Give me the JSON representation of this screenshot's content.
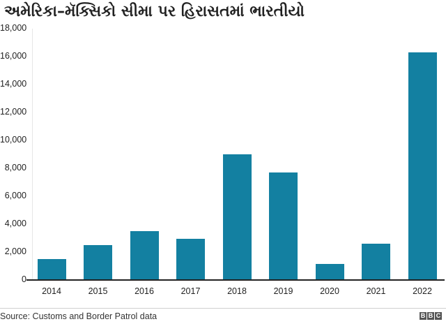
{
  "header": {
    "title": "અમેરિકા–મૅક્સિકો સીમા પર હિરાસતમાં ભારતીયો"
  },
  "footer": {
    "source": "Source: Customs and Border Patrol data",
    "logo_letters": [
      "B",
      "B",
      "C"
    ]
  },
  "colors": {
    "bar": "#1380a1",
    "axis": "#222222",
    "gridline": "#e6e6e6"
  },
  "chart_data": {
    "type": "bar",
    "title": "અમેરિકા–મૅક્સિકો સીમા પર હિરાસતમાં ભારતીયો",
    "xlabel": "",
    "ylabel": "",
    "categories": [
      "2014",
      "2015",
      "2016",
      "2017",
      "2018",
      "2019",
      "2020",
      "2021",
      "2022"
    ],
    "values": [
      1500,
      2500,
      3500,
      2950,
      9000,
      7700,
      1150,
      2600,
      16300
    ],
    "ylim": [
      0,
      18000
    ],
    "yticks": [
      0,
      2000,
      4000,
      6000,
      8000,
      10000,
      12000,
      14000,
      16000,
      18000
    ],
    "ytick_labels": [
      "0",
      "2,000",
      "4,000",
      "6,000",
      "8,000",
      "10,000",
      "12,000",
      "14,000",
      "16,000",
      "18,000"
    ],
    "grid": false,
    "legend": null,
    "source": "Source: Customs and Border Patrol data"
  }
}
